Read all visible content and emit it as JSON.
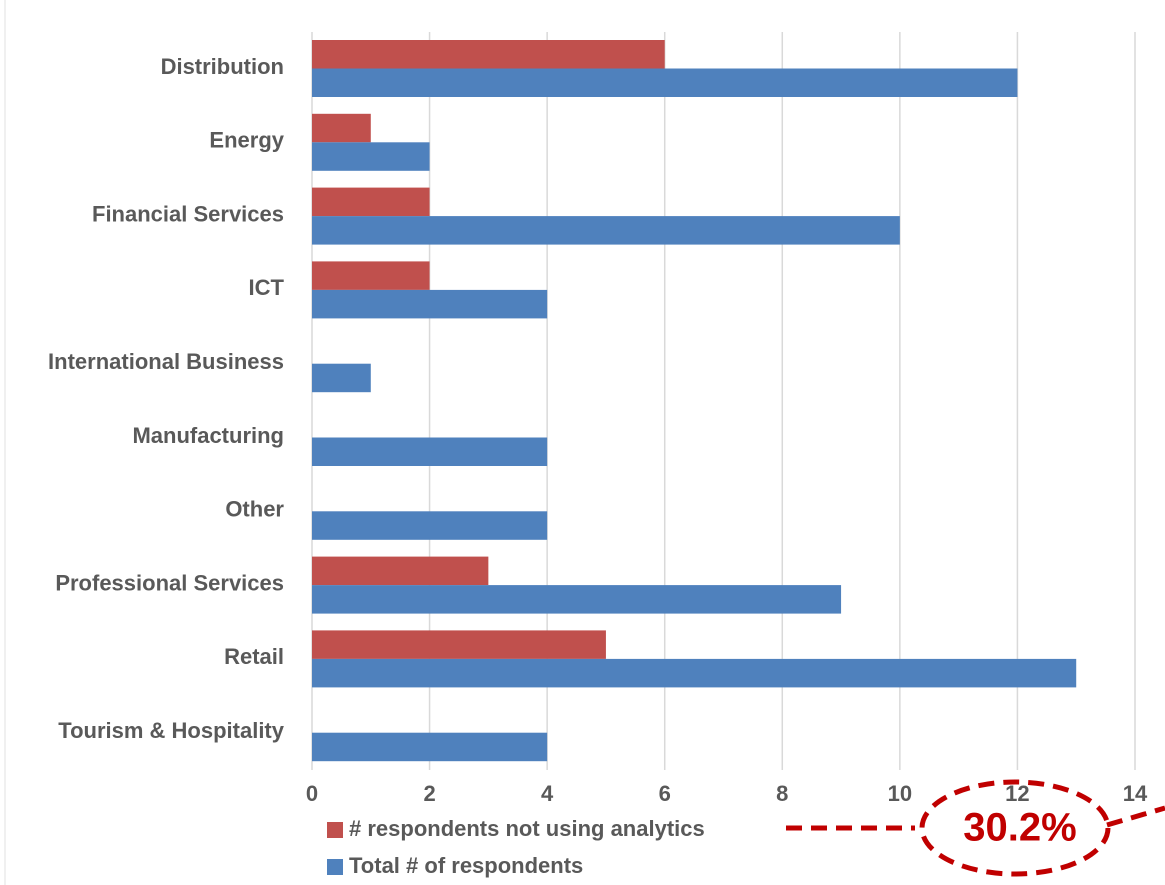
{
  "chart_data": {
    "type": "bar",
    "orientation": "horizontal",
    "categories": [
      "Distribution",
      "Energy",
      "Financial Services",
      "ICT",
      "International Business",
      "Manufacturing",
      "Other",
      "Professional Services",
      "Retail",
      "Tourism & Hospitality"
    ],
    "series": [
      {
        "name": "# respondents not using analytics",
        "color": "#c0504d",
        "values": [
          6,
          1,
          2,
          2,
          null,
          null,
          null,
          3,
          5,
          null
        ]
      },
      {
        "name": "Total # of respondents",
        "color": "#4f81bd",
        "values": [
          12,
          2,
          10,
          4,
          1,
          4,
          4,
          9,
          13,
          4
        ]
      }
    ],
    "xlim": [
      0,
      14
    ],
    "xticks": [
      0,
      2,
      4,
      6,
      8,
      10,
      12,
      14
    ],
    "grid": true,
    "annotation": "30.2%"
  }
}
